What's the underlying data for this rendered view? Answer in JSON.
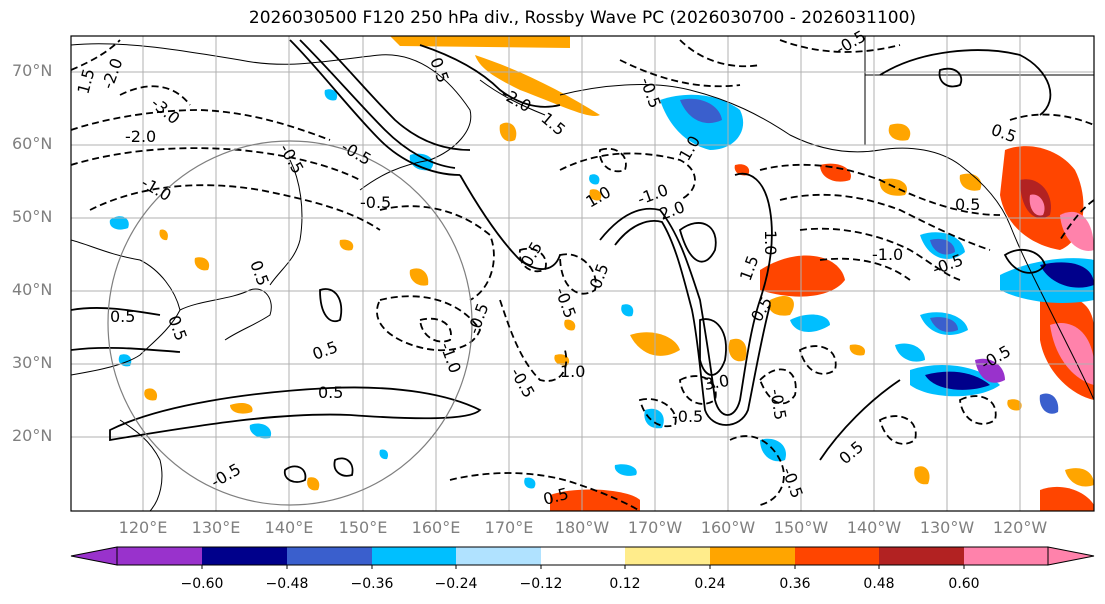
{
  "title": "2026030500 F120 250 hPa div., Rossby Wave PC (2026030700 - 2026031100)",
  "lat_labels": [
    "70°N",
    "60°N",
    "50°N",
    "40°N",
    "30°N",
    "20°N"
  ],
  "lon_labels": [
    "120°E",
    "130°E",
    "140°E",
    "150°E",
    "160°E",
    "170°E",
    "180°W",
    "170°W",
    "160°W",
    "150°W",
    "140°W",
    "130°W",
    "120°W"
  ],
  "colorbar": {
    "ticks": [
      "−0.60",
      "−0.48",
      "−0.36",
      "−0.24",
      "−0.12",
      "0.12",
      "0.24",
      "0.36",
      "0.48",
      "0.60"
    ],
    "colors": [
      "#9932cc",
      "#00008b",
      "#3a5fcd",
      "#00bfff",
      "#b0e2ff",
      "#ffffff",
      "#ffec8b",
      "#ffa500",
      "#ff4500",
      "#b22222",
      "#ff82ab"
    ]
  },
  "contour_labels": [
    "1.5",
    "-2.0",
    "-3.0",
    "-2.0",
    "-1.0",
    "-0.5",
    "-0.5",
    "0.5",
    "0.5",
    "0.5",
    "-1.0",
    "0.5",
    "0.5",
    "-0.5",
    "0.5",
    "-0.5",
    "-0.5",
    "-0.5",
    "1.0",
    "-2.0",
    "1.5",
    "1.0",
    "-1.0",
    "-0.5",
    "2.0",
    "1.0",
    "1.0",
    "0.5",
    "-0.5",
    "0.5",
    "0.5",
    "-0.5",
    "-1.0",
    "-0.5",
    "0.5",
    "3.0",
    "-0.5",
    "1.5",
    "0.5",
    "-0.5",
    "0.5",
    "-0.5",
    "0.5",
    "-0.5"
  ]
}
